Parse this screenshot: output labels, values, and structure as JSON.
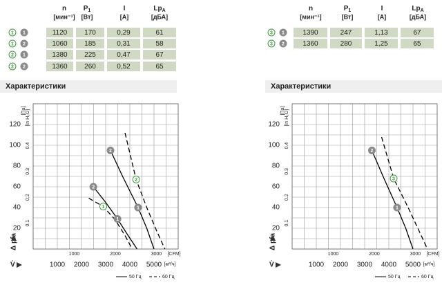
{
  "tables": [
    {
      "columns": [
        {
          "name": "n",
          "unit": "[мин⁻¹]"
        },
        {
          "name": "P",
          "sub": "1",
          "unit": "[Вт]"
        },
        {
          "name": "I",
          "unit": "[A]"
        },
        {
          "name": "Lp",
          "sub": "A",
          "unit": "[дБА]"
        }
      ],
      "rows": [
        {
          "curve": "1",
          "speed": "1",
          "cells": [
            "1120",
            "170",
            "0,29",
            "61"
          ]
        },
        {
          "curve": "1",
          "speed": "2",
          "cells": [
            "1060",
            "185",
            "0,31",
            "58"
          ]
        },
        {
          "curve": "2",
          "speed": "1",
          "cells": [
            "1380",
            "225",
            "0,47",
            "67"
          ]
        },
        {
          "curve": "2",
          "speed": "2",
          "cells": [
            "1360",
            "260",
            "0,52",
            "65"
          ]
        }
      ]
    },
    {
      "columns": [
        {
          "name": "n",
          "unit": "[мин⁻¹]"
        },
        {
          "name": "P",
          "sub": "1",
          "unit": "[Вт]"
        },
        {
          "name": "I",
          "unit": "[A]"
        },
        {
          "name": "Lp",
          "sub": "A",
          "unit": "[дБА]"
        }
      ],
      "rows": [
        {
          "curve": "3",
          "speed": "1",
          "cells": [
            "1390",
            "247",
            "1,13",
            "67"
          ]
        },
        {
          "curve": "3",
          "speed": "2",
          "cells": [
            "1360",
            "280",
            "1,25",
            "65"
          ]
        }
      ]
    }
  ],
  "section_titles": [
    "Характеристики",
    "Характеристики"
  ],
  "chart_data": [
    {
      "type": "line",
      "ylabel": "[Па]",
      "y2label": "[in H₂O]",
      "xlabel": "[м³/ч]",
      "x2label": "[CFM]",
      "ysymbol": "Δ pfa",
      "xsymbol": "V̇",
      "xlim": [
        0,
        6000
      ],
      "xticks": [
        1000,
        2000,
        3000,
        4000,
        5000
      ],
      "x2lim": [
        0,
        3531
      ],
      "x2ticks": [
        1000,
        2000,
        3000
      ],
      "ylim": [
        0,
        140
      ],
      "yticks": [
        20,
        40,
        60,
        80,
        100,
        120
      ],
      "y2lim": [
        0,
        0.562
      ],
      "y2ticks": [
        0.1,
        0.2,
        0.3,
        0.4
      ],
      "xgrid": [
        500,
        1000,
        1500,
        2000,
        2500,
        3000,
        3500,
        4000,
        4500,
        5000,
        5500
      ],
      "ygrid": [
        10,
        20,
        30,
        40,
        50,
        60,
        70,
        80,
        90,
        100,
        110,
        120,
        130
      ],
      "series": [
        {
          "style": "solid",
          "color": "#000000",
          "x": [
            3200,
            3700,
            4340,
            4700,
            5000
          ],
          "values": [
            95,
            70,
            40,
            20,
            0
          ]
        },
        {
          "style": "dashed",
          "color": "#000000",
          "x": [
            3800,
            4260,
            4700,
            5100,
            5450
          ],
          "values": [
            112,
            67,
            40,
            18,
            0
          ]
        },
        {
          "style": "solid",
          "color": "#000000",
          "x": [
            2490,
            3000,
            3490,
            3900,
            4300
          ],
          "values": [
            60,
            45,
            29,
            14,
            0
          ]
        },
        {
          "style": "dashed",
          "color": "#000000",
          "x": [
            2300,
            2900,
            3400,
            3800,
            4100
          ],
          "values": [
            49,
            41,
            28,
            13,
            0
          ]
        }
      ],
      "markers": [
        {
          "label": "2",
          "kind": "speed",
          "x": 3200,
          "y": 95
        },
        {
          "label": "2",
          "kind": "curve",
          "x": 4260,
          "y": 67
        },
        {
          "label": "1",
          "kind": "speed",
          "x": 4340,
          "y": 40
        },
        {
          "label": "2",
          "kind": "speed",
          "x": 2490,
          "y": 60
        },
        {
          "label": "1",
          "kind": "curve",
          "x": 2900,
          "y": 41
        },
        {
          "label": "1",
          "kind": "speed",
          "x": 3490,
          "y": 29
        }
      ],
      "legend": [
        {
          "label": "50 Гц",
          "style": "solid"
        },
        {
          "label": "60 Гц",
          "style": "dashed"
        }
      ]
    },
    {
      "type": "line",
      "ylabel": "[Па]",
      "y2label": "[in H₂O]",
      "xlabel": "[м³/ч]",
      "x2label": "[CFM]",
      "ysymbol": "Δ pfa",
      "xsymbol": "V̇",
      "xlim": [
        0,
        6000
      ],
      "xticks": [
        1000,
        2000,
        3000,
        4000,
        5000
      ],
      "x2lim": [
        0,
        3531
      ],
      "x2ticks": [
        1000,
        2000,
        3000
      ],
      "ylim": [
        0,
        140
      ],
      "yticks": [
        20,
        40,
        60,
        80,
        100,
        120
      ],
      "y2lim": [
        0,
        0.562
      ],
      "y2ticks": [
        0.1,
        0.2,
        0.3,
        0.4
      ],
      "xgrid": [
        500,
        1000,
        1500,
        2000,
        2500,
        3000,
        3500,
        4000,
        4500,
        5000,
        5500
      ],
      "ygrid": [
        10,
        20,
        30,
        40,
        50,
        60,
        70,
        80,
        90,
        100,
        110,
        120,
        130
      ],
      "series": [
        {
          "style": "solid",
          "color": "#000000",
          "x": [
            3300,
            3800,
            4340,
            4700,
            5000
          ],
          "values": [
            95,
            68,
            40,
            20,
            0
          ]
        },
        {
          "style": "dashed",
          "color": "#000000",
          "x": [
            3700,
            4200,
            4800,
            5300,
            5600
          ],
          "values": [
            108,
            68,
            40,
            15,
            0
          ]
        }
      ],
      "markers": [
        {
          "label": "2",
          "kind": "speed",
          "x": 3300,
          "y": 95
        },
        {
          "label": "3",
          "kind": "curve",
          "x": 4200,
          "y": 68
        },
        {
          "label": "1",
          "kind": "speed",
          "x": 4340,
          "y": 40
        }
      ],
      "legend": [
        {
          "label": "50 Гц",
          "style": "solid"
        },
        {
          "label": "60 Гц",
          "style": "dashed"
        }
      ]
    }
  ]
}
